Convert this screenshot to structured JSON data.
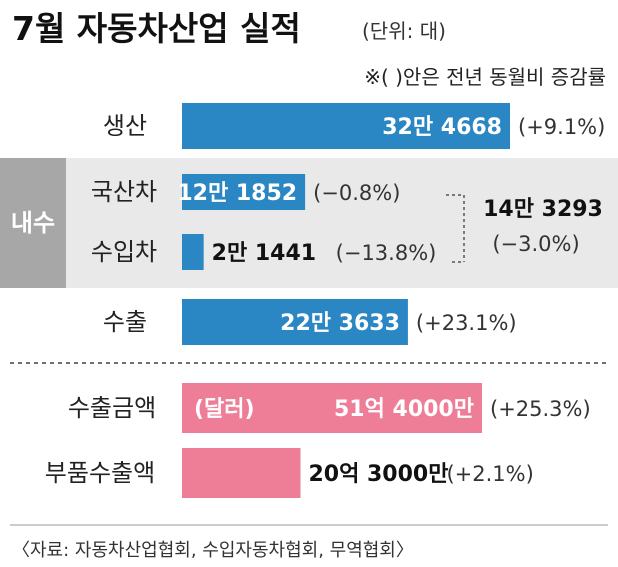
{
  "title": "7월 자동차산업 실적",
  "unit": "(단위: 대)",
  "note": "※(  )안은 전년 동월비 증감률",
  "group": {
    "label": "내수",
    "total_value": "14만 3293",
    "total_change": "(−3.0%)"
  },
  "source": "〈자료: 자동차산업협회, 수입자동차협회, 무역협회〉",
  "colors": {
    "blue": "#2b87c4",
    "pink": "#ee7d97",
    "group_bg": "#e9e9e9",
    "group_tag": "#a7a7a7"
  },
  "chart_data": [
    {
      "type": "bar",
      "orientation": "horizontal",
      "title": "7월 자동차산업 실적",
      "unit": "대",
      "categories": [
        "생산",
        "국산차",
        "수입차",
        "수출"
      ],
      "values": [
        324668,
        121852,
        21441,
        223633
      ],
      "value_labels": [
        "32만 4668",
        "12만 1852",
        "2만 1441",
        "22만 3633"
      ],
      "change_labels": [
        "(+9.1%)",
        "(−0.8%)",
        "(−13.8%)",
        "(+23.1%)"
      ],
      "changes_pct": [
        9.1,
        -0.8,
        -13.8,
        23.1
      ]
    },
    {
      "type": "bar",
      "orientation": "horizontal",
      "unit": "달러",
      "bar_note": "(달러)",
      "categories": [
        "수출금액",
        "부품수출액"
      ],
      "values": [
        5140000000,
        2030000000
      ],
      "value_labels": [
        "51억 4000만",
        "20억 3000만"
      ],
      "change_labels": [
        "(+25.3%)",
        "(+2.1%)"
      ],
      "changes_pct": [
        25.3,
        2.1
      ]
    }
  ]
}
